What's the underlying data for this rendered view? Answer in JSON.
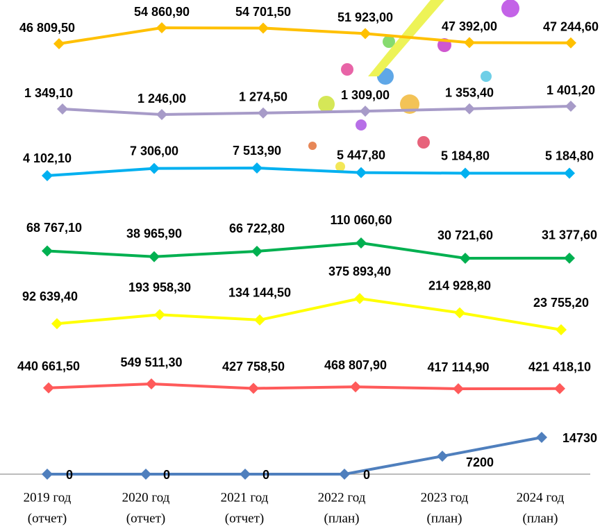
{
  "chart_data": {
    "type": "line",
    "categories": [
      [
        "2019 год",
        "(отчет)"
      ],
      [
        "2020 год",
        "(отчет)"
      ],
      [
        "2021 год",
        "(отчет)"
      ],
      [
        "2022 год",
        "(план)"
      ],
      [
        "2023 год",
        "(план)"
      ],
      [
        "2024 год",
        "(план)"
      ]
    ],
    "series": [
      {
        "color": "#ffc000",
        "values": [
          46809.5,
          54860.9,
          54701.5,
          51923.0,
          47392.0,
          47244.6
        ],
        "value_labels": [
          "46 809,50",
          "54 860,90",
          "54 701,50",
          "51 923,00",
          "47 392,00",
          "47 244,60"
        ]
      },
      {
        "color": "#a79bc8",
        "values": [
          1349.1,
          1246.0,
          1274.5,
          1309.0,
          1353.4,
          1401.2
        ],
        "value_labels": [
          "1 349,10",
          "1 246,00",
          "1 274,50",
          "1 309,00",
          "1 353,40",
          "1 401,20"
        ]
      },
      {
        "color": "#00b0f0",
        "values": [
          4102.1,
          7306.0,
          7513.9,
          5447.8,
          5184.8,
          5184.8
        ],
        "value_labels": [
          "4 102,10",
          "7 306,00",
          "7 513,90",
          "5 447,80",
          "5 184,80",
          "5 184,80"
        ]
      },
      {
        "color": "#00b050",
        "values": [
          68767.1,
          38965.9,
          66722.8,
          110060.6,
          30721.6,
          31377.6
        ],
        "value_labels": [
          "68 767,10",
          "38 965,90",
          "66 722,80",
          "110 060,60",
          "30 721,60",
          "31 377,60"
        ]
      },
      {
        "color": "#ffff00",
        "values": [
          92639.4,
          193958.3,
          134144.5,
          375893.4,
          214928.8,
          23755.2
        ],
        "value_labels": [
          "92 639,40",
          "193 958,30",
          "134 144,50",
          "375 893,40",
          "214 928,80",
          "23 755,20"
        ]
      },
      {
        "color": "#ff5a5a",
        "values": [
          440661.5,
          549511.3,
          427758.5,
          468807.9,
          417114.9,
          421418.1
        ],
        "value_labels": [
          "440 661,50",
          "549 511,30",
          "427 758,50",
          "468 807,90",
          "417 114,90",
          "421 418,10"
        ]
      },
      {
        "color": "#4f7fbd",
        "values": [
          0,
          0,
          0,
          0,
          7200,
          14730
        ]
      }
    ]
  }
}
